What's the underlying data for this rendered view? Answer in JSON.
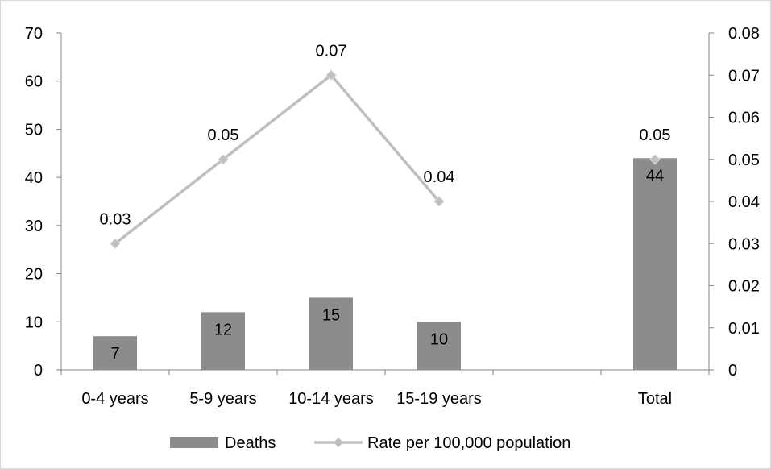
{
  "chart_data": {
    "type": "bar",
    "combo": "bar-line dual-axis",
    "categories": [
      "0-4 years",
      "5-9 years",
      "10-14 years",
      "15-19 years",
      "",
      "Total"
    ],
    "series": [
      {
        "name": "Deaths",
        "type": "bar",
        "axis": "left",
        "color": "#8c8c8c",
        "values": [
          7,
          12,
          15,
          10,
          null,
          44
        ],
        "data_labels": [
          "7",
          "12",
          "15",
          "10",
          "",
          "44"
        ]
      },
      {
        "name": "Rate per 100,000 population",
        "type": "line",
        "axis": "right",
        "color": "#bfbfbf",
        "marker": "diamond",
        "values": [
          0.03,
          0.05,
          0.07,
          0.04,
          null,
          0.05
        ],
        "data_labels": [
          "0.03",
          "0.05",
          "0.07",
          "0.04",
          "",
          "0.05"
        ]
      }
    ],
    "y_left": {
      "ylim": [
        0,
        70
      ],
      "ticks": [
        "0",
        "10",
        "20",
        "30",
        "40",
        "50",
        "60",
        "70"
      ]
    },
    "y_right": {
      "ylim": [
        0,
        0.08
      ],
      "ticks": [
        "0",
        "0.01",
        "0.02",
        "0.03",
        "0.04",
        "0.05",
        "0.06",
        "0.07",
        "0.08"
      ]
    },
    "grid": false,
    "legend": "bottom-center"
  }
}
